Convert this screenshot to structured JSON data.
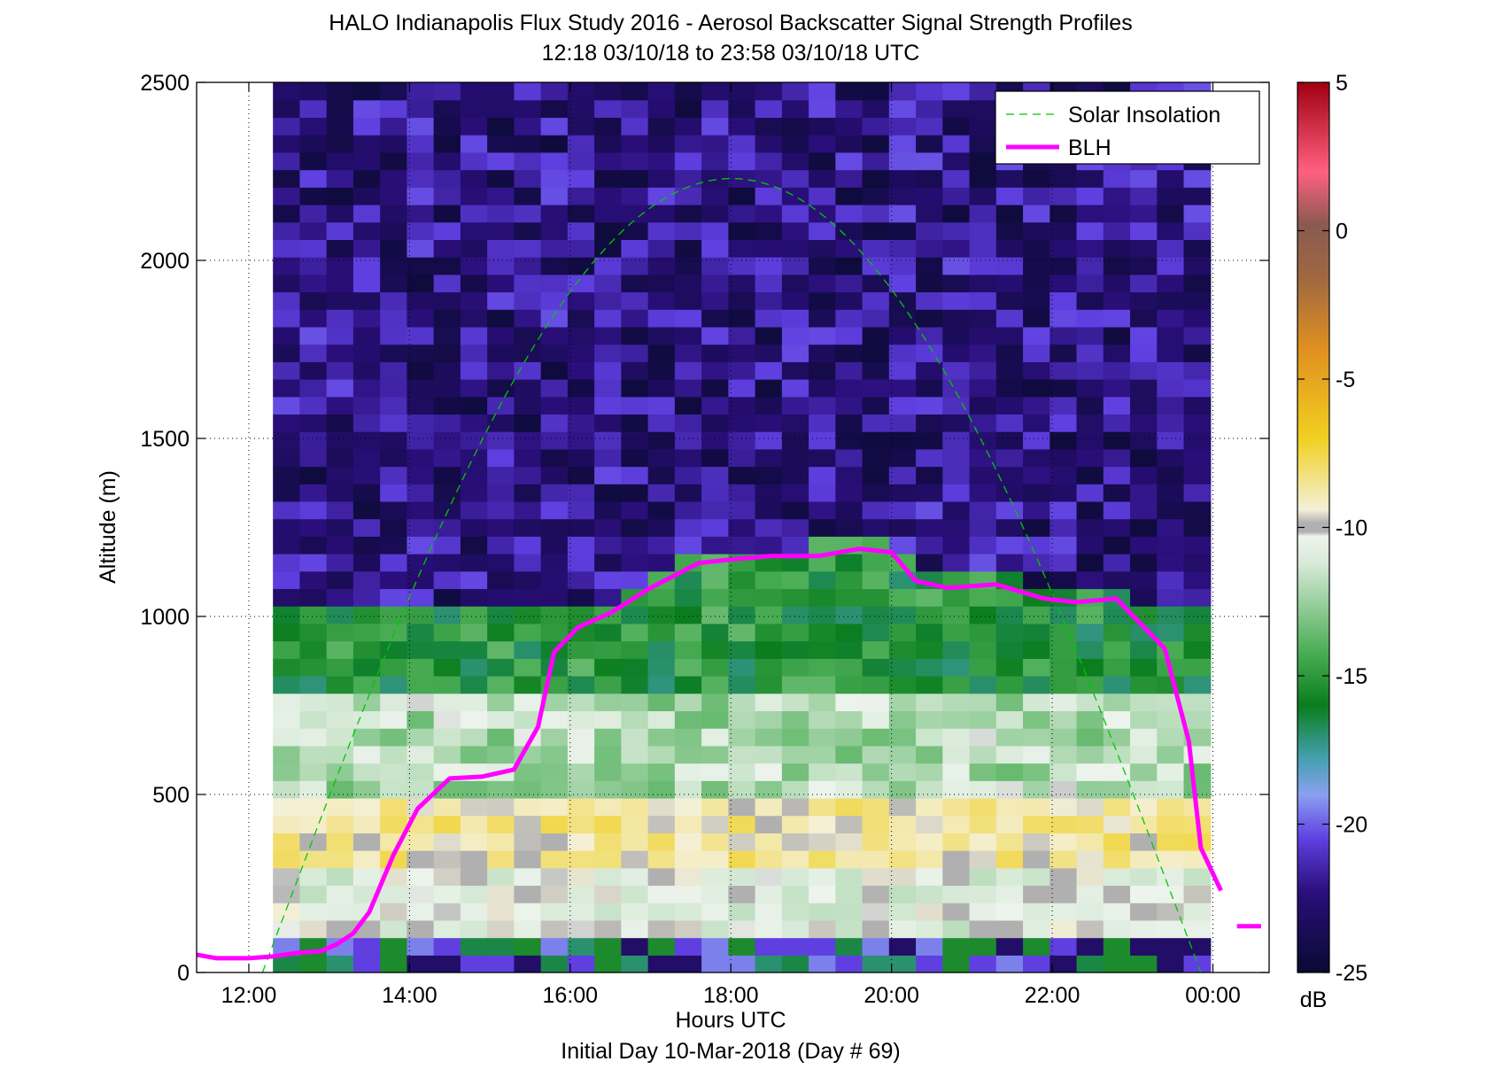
{
  "chart_data": {
    "type": "heatmap",
    "title": "HALO Indianapolis Flux Study 2016 - Aerosol Backscatter Signal Strength Profiles",
    "subtitle": "12:18 03/10/18 to 23:58 03/10/18  UTC",
    "xlabel": "Hours UTC",
    "xlabel2": "Initial Day 10-Mar-2018 (Day # 69)",
    "ylabel": "Altitude (m)",
    "xlim": [
      11.35,
      24.7
    ],
    "ylim": [
      0,
      2500
    ],
    "x_ticks": [
      12,
      14,
      16,
      18,
      20,
      22,
      24
    ],
    "x_tick_labels": [
      "12:00",
      "14:00",
      "16:00",
      "18:00",
      "20:00",
      "22:00",
      "00:00"
    ],
    "y_ticks": [
      0,
      500,
      1000,
      1500,
      2000,
      2500
    ],
    "y_tick_labels": [
      "0",
      "500",
      "1000",
      "1500",
      "2000",
      "2500"
    ],
    "grid": true,
    "colorbar": {
      "label": "dB",
      "range": [
        -25,
        5
      ],
      "ticks": [
        5,
        0,
        -5,
        -10,
        -15,
        -20,
        -25
      ],
      "tick_labels": [
        "5",
        "0",
        "-5",
        "-10",
        "-15",
        "-20",
        "-25"
      ]
    },
    "legend": {
      "placement": "top-right",
      "entries": [
        "Solar Insolation",
        "BLH"
      ]
    },
    "heatmap": {
      "x_start": 12.3,
      "x_end": 23.97,
      "x_bins": 35,
      "y_start": 0,
      "y_end": 2500,
      "y_bins": 51,
      "profile_bands_dB": [
        {
          "alt_min": 0,
          "alt_max": 100,
          "values": [
            -22,
            -19,
            -15,
            -16,
            -20,
            -17
          ]
        },
        {
          "alt_min": 100,
          "alt_max": 300,
          "values": [
            -12,
            -11,
            -10.5,
            -12.5
          ]
        },
        {
          "alt_min": 300,
          "alt_max": 500,
          "values": [
            -8,
            -8.5,
            -9.5,
            -10.5
          ]
        },
        {
          "alt_min": 500,
          "alt_max": 800,
          "values": [
            -10.5,
            -11.5,
            -12.5,
            -13.5
          ]
        },
        {
          "alt_min": 800,
          "alt_max": 1100,
          "values": [
            -14,
            -15,
            -16,
            -17
          ]
        },
        {
          "alt_min": 1100,
          "alt_max": 2500,
          "values": [
            -21,
            -22,
            -23,
            -24
          ]
        }
      ]
    },
    "series": [
      {
        "name": "BLH",
        "color": "#ff00ff",
        "x": [
          11.35,
          11.6,
          12.0,
          12.3,
          12.6,
          12.9,
          13.1,
          13.3,
          13.5,
          13.8,
          14.1,
          14.5,
          14.9,
          15.3,
          15.6,
          15.8,
          16.1,
          16.5,
          17.0,
          17.6,
          18.0,
          18.5,
          19.1,
          19.6,
          20.0,
          20.3,
          20.7,
          21.3,
          21.9,
          22.3,
          22.8,
          23.4,
          23.7,
          23.85,
          24.1
        ],
        "y": [
          50,
          40,
          40,
          45,
          55,
          60,
          80,
          110,
          170,
          330,
          460,
          545,
          550,
          570,
          690,
          900,
          970,
          1010,
          1080,
          1150,
          1160,
          1170,
          1170,
          1190,
          1180,
          1100,
          1080,
          1090,
          1050,
          1040,
          1050,
          910,
          650,
          350,
          230
        ]
      },
      {
        "name": "Solar Insolation",
        "color": "#00c800",
        "style": "dashed",
        "x": [
          12.17,
          23.85
        ],
        "y_peak": 2230,
        "peak_x": 18.0
      }
    ],
    "blh_tail": {
      "x": [
        24.3,
        24.6
      ],
      "y": [
        130,
        130
      ]
    }
  }
}
